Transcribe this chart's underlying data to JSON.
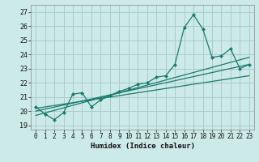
{
  "xlabel": "Humidex (Indice chaleur)",
  "bg_color": "#cceae7",
  "grid_color": "#aacccc",
  "line_color": "#1a7a6e",
  "xlim": [
    -0.5,
    23.5
  ],
  "ylim": [
    18.7,
    27.5
  ],
  "xticks": [
    0,
    1,
    2,
    3,
    4,
    5,
    6,
    7,
    8,
    9,
    10,
    11,
    12,
    13,
    14,
    15,
    16,
    17,
    18,
    19,
    20,
    21,
    22,
    23
  ],
  "yticks": [
    19,
    20,
    21,
    22,
    23,
    24,
    25,
    26,
    27
  ],
  "series1": {
    "x": [
      0,
      1,
      2,
      3,
      4,
      5,
      6,
      7,
      8,
      9,
      10,
      11,
      12,
      13,
      14,
      15,
      16,
      17,
      18,
      19,
      20,
      21,
      22,
      23
    ],
    "y": [
      20.3,
      19.8,
      19.4,
      19.9,
      21.2,
      21.3,
      20.3,
      20.8,
      21.1,
      21.4,
      21.6,
      21.9,
      22.0,
      22.4,
      22.5,
      23.3,
      25.9,
      26.8,
      25.8,
      23.8,
      23.9,
      24.4,
      23.0,
      23.3
    ]
  },
  "reg1": {
    "x": [
      0,
      23
    ],
    "y": [
      20.0,
      23.3
    ]
  },
  "reg2": {
    "x": [
      0,
      23
    ],
    "y": [
      20.2,
      22.5
    ]
  },
  "reg3": {
    "x": [
      0,
      23
    ],
    "y": [
      19.7,
      23.8
    ]
  }
}
